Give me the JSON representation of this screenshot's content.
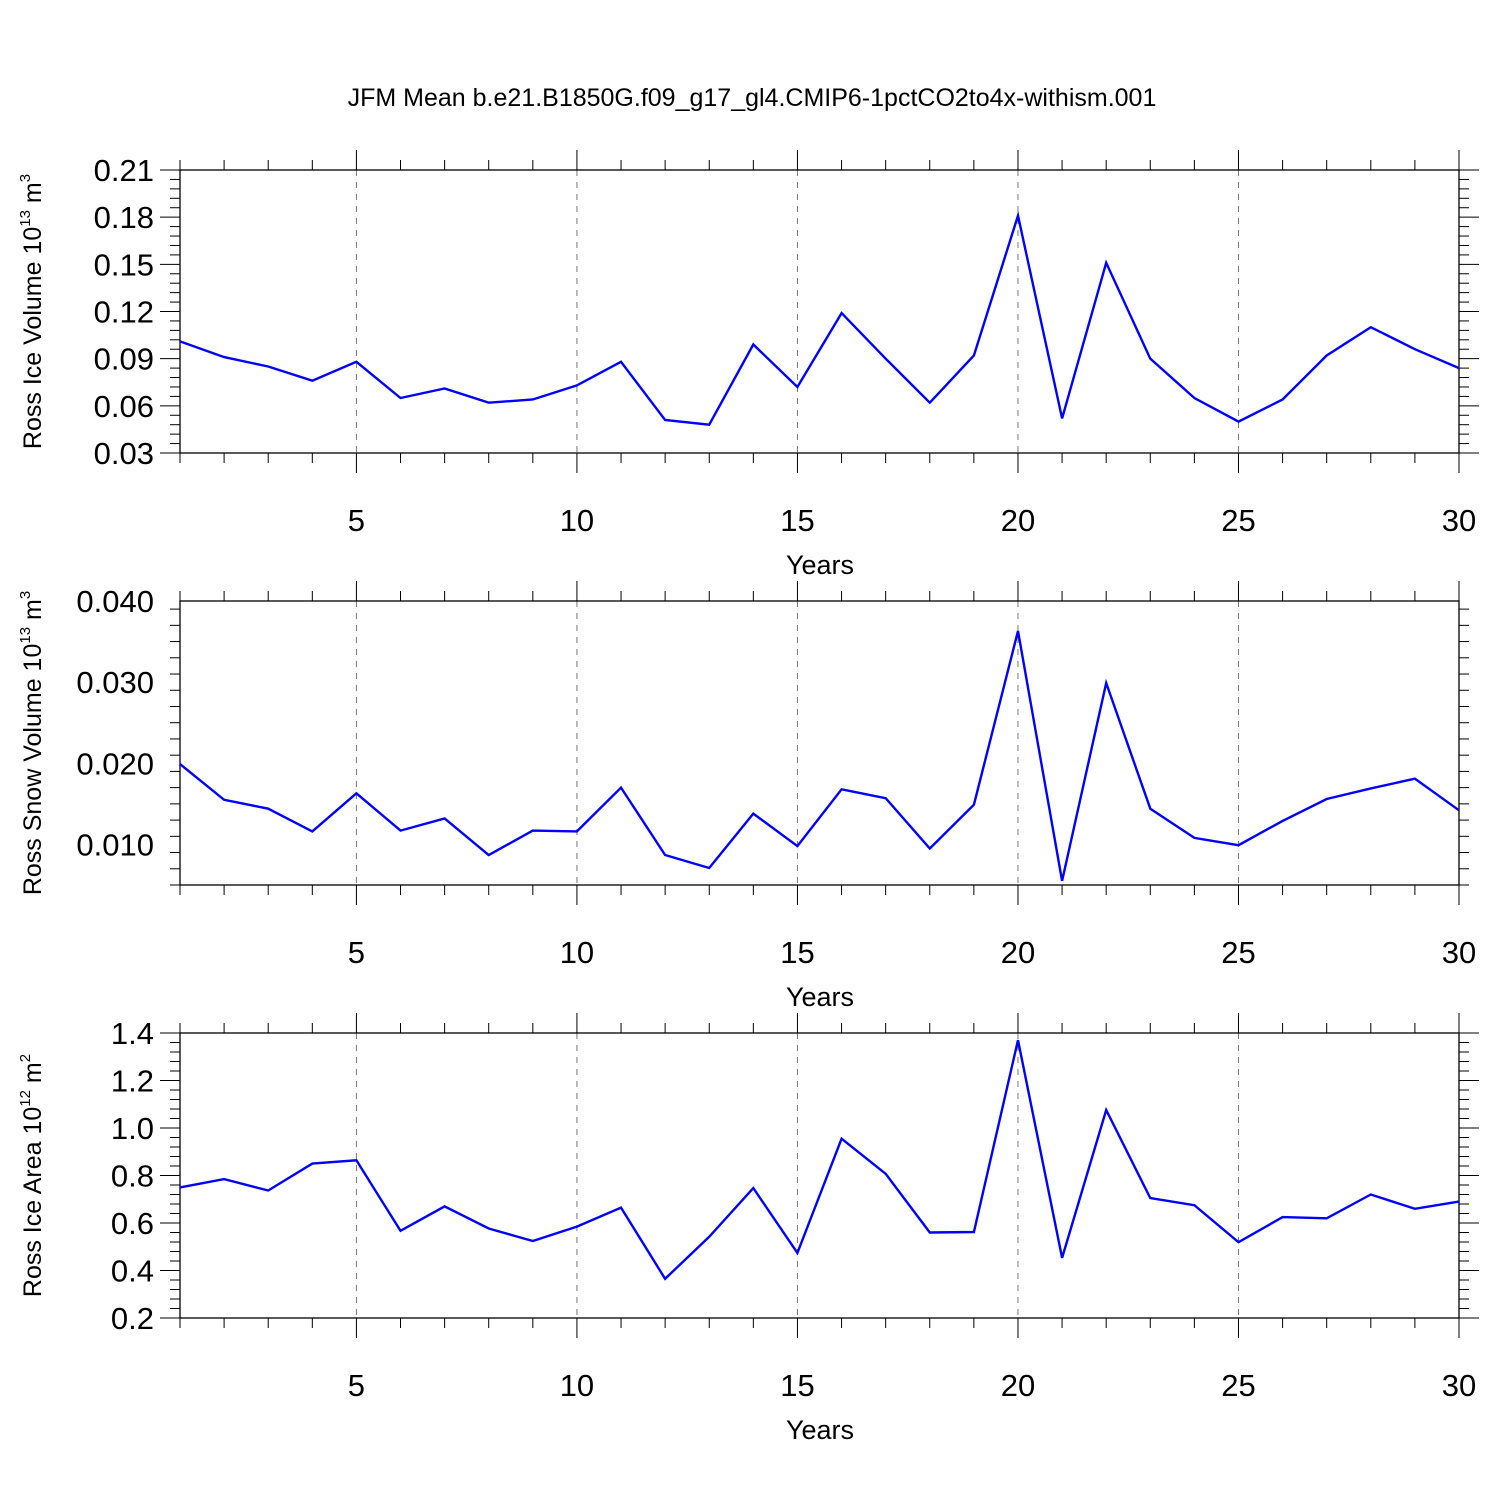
{
  "title": "JFM Mean b.e21.B1850G.f09_g17_gl4.CMIP6-1pctCO2to4x-withism.001",
  "chart_data": [
    {
      "type": "line",
      "xlabel": "Years",
      "ylabel": {
        "main": "Ross Ice Volume 10",
        "exp": "13",
        "unit": " m",
        "unit_exp": "3"
      },
      "xlim": [
        1,
        30
      ],
      "ylim": [
        0.03,
        0.21
      ],
      "x_ticks": [
        5,
        10,
        15,
        20,
        25,
        30
      ],
      "y_ticks": [
        "0.03",
        "0.06",
        "0.09",
        "0.12",
        "0.15",
        "0.18",
        "0.21"
      ],
      "grid": "vertical dashed at major x ticks",
      "color": "#0000ff",
      "x": [
        1,
        2,
        3,
        4,
        5,
        6,
        7,
        8,
        9,
        10,
        11,
        12,
        13,
        14,
        15,
        16,
        17,
        18,
        19,
        20,
        21,
        22,
        23,
        24,
        25,
        26,
        27,
        28,
        29,
        30
      ],
      "values": [
        0.101,
        0.091,
        0.085,
        0.076,
        0.088,
        0.065,
        0.071,
        0.062,
        0.064,
        0.073,
        0.088,
        0.051,
        0.048,
        0.099,
        0.072,
        0.119,
        0.09,
        0.062,
        0.092,
        0.181,
        0.052,
        0.151,
        0.09,
        0.065,
        0.05,
        0.064,
        0.092,
        0.11,
        0.096,
        0.084
      ]
    },
    {
      "type": "line",
      "xlabel": "Years",
      "ylabel": {
        "main": "Ross Snow Volume 10",
        "exp": "13",
        "unit": " m",
        "unit_exp": "3"
      },
      "xlim": [
        1,
        30
      ],
      "ylim": [
        0.005,
        0.04
      ],
      "x_ticks": [
        5,
        10,
        15,
        20,
        25,
        30
      ],
      "y_ticks": [
        "0.010",
        "0.020",
        "0.030",
        "0.040"
      ],
      "grid": "vertical dashed at major x ticks",
      "color": "#0000ff",
      "x": [
        1,
        2,
        3,
        4,
        5,
        6,
        7,
        8,
        9,
        10,
        11,
        12,
        13,
        14,
        15,
        16,
        17,
        18,
        19,
        20,
        21,
        22,
        23,
        24,
        25,
        26,
        27,
        28,
        29,
        30
      ],
      "values": [
        0.0199,
        0.0155,
        0.0144,
        0.0116,
        0.0163,
        0.0117,
        0.0132,
        0.0087,
        0.0117,
        0.0116,
        0.017,
        0.0087,
        0.0071,
        0.0138,
        0.0098,
        0.0168,
        0.0157,
        0.0095,
        0.0149,
        0.0363,
        0.0055,
        0.0299,
        0.0144,
        0.0108,
        0.0099,
        0.0129,
        0.0156,
        0.0169,
        0.0181,
        0.0142
      ]
    },
    {
      "type": "line",
      "xlabel": "Years",
      "ylabel": {
        "main": "Ross Ice Area 10",
        "exp": "12",
        "unit": " m",
        "unit_exp": "2"
      },
      "xlim": [
        1,
        30
      ],
      "ylim": [
        0.2,
        1.4
      ],
      "x_ticks": [
        5,
        10,
        15,
        20,
        25,
        30
      ],
      "y_ticks": [
        "0.2",
        "0.4",
        "0.6",
        "0.8",
        "1.0",
        "1.2",
        "1.4"
      ],
      "grid": "vertical dashed at major x ticks",
      "color": "#0000ff",
      "x": [
        1,
        2,
        3,
        4,
        5,
        6,
        7,
        8,
        9,
        10,
        11,
        12,
        13,
        14,
        15,
        16,
        17,
        18,
        19,
        20,
        21,
        22,
        23,
        24,
        25,
        26,
        27,
        28,
        29,
        30
      ],
      "values": [
        0.75,
        0.785,
        0.737,
        0.85,
        0.864,
        0.567,
        0.67,
        0.577,
        0.524,
        0.585,
        0.665,
        0.365,
        0.542,
        0.747,
        0.474,
        0.955,
        0.807,
        0.56,
        0.562,
        1.37,
        0.453,
        1.076,
        0.705,
        0.675,
        0.519,
        0.625,
        0.62,
        0.72,
        0.66,
        0.69
      ]
    }
  ]
}
